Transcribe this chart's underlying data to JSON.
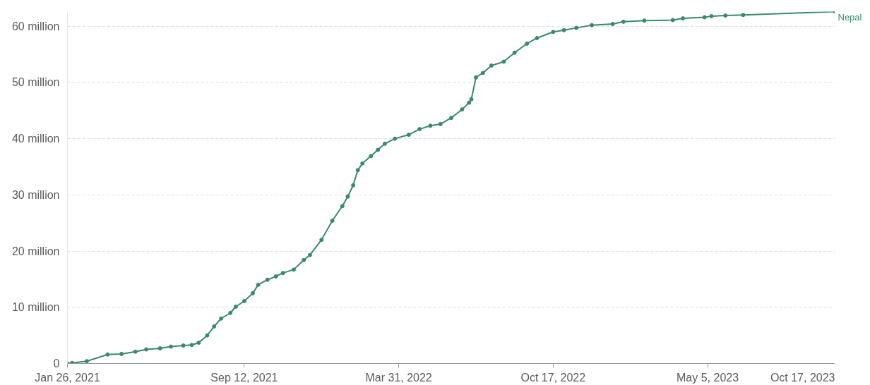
{
  "chart_data": {
    "type": "line",
    "marker": "circle",
    "grid": "y",
    "line_style": "solid",
    "xlim": [
      "2021-01-26",
      "2023-10-17"
    ],
    "ylim": [
      0,
      62.6
    ],
    "xticks": [
      {
        "value": "2021-01-26",
        "label": "Jan 26, 2021"
      },
      {
        "value": "2021-09-12",
        "label": "Sep 12, 2021"
      },
      {
        "value": "2022-03-31",
        "label": "Mar 31, 2022"
      },
      {
        "value": "2022-10-17",
        "label": "Oct 17, 2022"
      },
      {
        "value": "2023-05-05",
        "label": "May 5, 2023"
      },
      {
        "value": "2023-10-17",
        "label": "Oct 17, 2023"
      }
    ],
    "yticks": [
      {
        "value": 0,
        "label": "0"
      },
      {
        "value": 10,
        "label": "10 million"
      },
      {
        "value": 20,
        "label": "20 million"
      },
      {
        "value": 30,
        "label": "30 million"
      },
      {
        "value": 40,
        "label": "40 million"
      },
      {
        "value": 50,
        "label": "50 million"
      },
      {
        "value": 60,
        "label": "60 million"
      }
    ],
    "x": [
      "2021-01-26",
      "2021-02-01",
      "2021-02-20",
      "2021-03-19",
      "2021-04-06",
      "2021-04-24",
      "2021-05-08",
      "2021-05-26",
      "2021-06-09",
      "2021-06-25",
      "2021-07-06",
      "2021-07-15",
      "2021-07-26",
      "2021-08-04",
      "2021-08-13",
      "2021-08-25",
      "2021-09-01",
      "2021-09-12",
      "2021-09-23",
      "2021-09-30",
      "2021-10-12",
      "2021-10-23",
      "2021-11-01",
      "2021-11-15",
      "2021-11-28",
      "2021-12-06",
      "2021-12-21",
      "2022-01-04",
      "2022-01-17",
      "2022-01-24",
      "2022-01-31",
      "2022-02-06",
      "2022-02-12",
      "2022-02-23",
      "2022-03-04",
      "2022-03-13",
      "2022-03-26",
      "2022-04-13",
      "2022-04-27",
      "2022-05-11",
      "2022-05-24",
      "2022-06-07",
      "2022-06-21",
      "2022-06-30",
      "2022-07-03",
      "2022-07-09",
      "2022-07-18",
      "2022-07-29",
      "2022-08-14",
      "2022-08-28",
      "2022-09-13",
      "2022-09-26",
      "2022-10-17",
      "2022-10-31",
      "2022-11-16",
      "2022-12-06",
      "2023-01-02",
      "2023-01-16",
      "2023-02-12",
      "2023-03-21",
      "2023-04-03",
      "2023-05-01",
      "2023-05-10",
      "2023-05-28",
      "2023-06-20",
      "2023-10-17"
    ],
    "series": [
      {
        "name": "Nepal",
        "color": "#3a8a68",
        "values": [
          0,
          0.1,
          0.4,
          1.6,
          1.7,
          2.1,
          2.5,
          2.7,
          3.0,
          3.2,
          3.3,
          3.7,
          5.0,
          6.6,
          8.0,
          9.0,
          10.1,
          11.1,
          12.5,
          14.0,
          14.9,
          15.5,
          16.1,
          16.7,
          18.4,
          19.3,
          22.0,
          25.4,
          28.0,
          29.7,
          31.7,
          34.4,
          35.6,
          36.9,
          38.0,
          39.1,
          40.0,
          40.7,
          41.7,
          42.3,
          42.6,
          43.7,
          45.2,
          46.4,
          47.0,
          50.9,
          51.7,
          53.0,
          53.7,
          55.3,
          56.9,
          57.9,
          59.0,
          59.3,
          59.7,
          60.2,
          60.4,
          60.8,
          61.0,
          61.1,
          61.4,
          61.6,
          61.8,
          61.9,
          62.0,
          62.6
        ]
      }
    ]
  }
}
